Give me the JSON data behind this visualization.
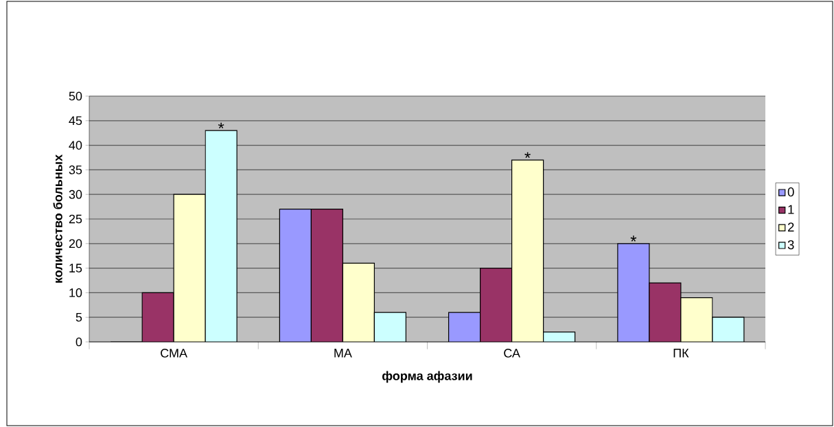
{
  "chart_data": {
    "type": "bar",
    "xlabel": "форма афазии",
    "ylabel": "количество больных",
    "categories": [
      "СМА",
      "МА",
      "СА",
      "ПК"
    ],
    "series": [
      {
        "name": "0",
        "color": "#9999ff",
        "values": [
          0,
          27,
          6,
          20
        ]
      },
      {
        "name": "1",
        "color": "#993366",
        "values": [
          10,
          27,
          15,
          12
        ]
      },
      {
        "name": "2",
        "color": "#ffffcc",
        "values": [
          30,
          16,
          37,
          9
        ]
      },
      {
        "name": "3",
        "color": "#ccffff",
        "values": [
          43,
          6,
          2,
          5
        ]
      }
    ],
    "ylim": [
      0,
      50
    ],
    "yticks": [
      0,
      5,
      10,
      15,
      20,
      25,
      30,
      35,
      40,
      45,
      50
    ],
    "grid": "y",
    "legend": "right",
    "annotations": [
      "*",
      "*",
      "*"
    ]
  }
}
